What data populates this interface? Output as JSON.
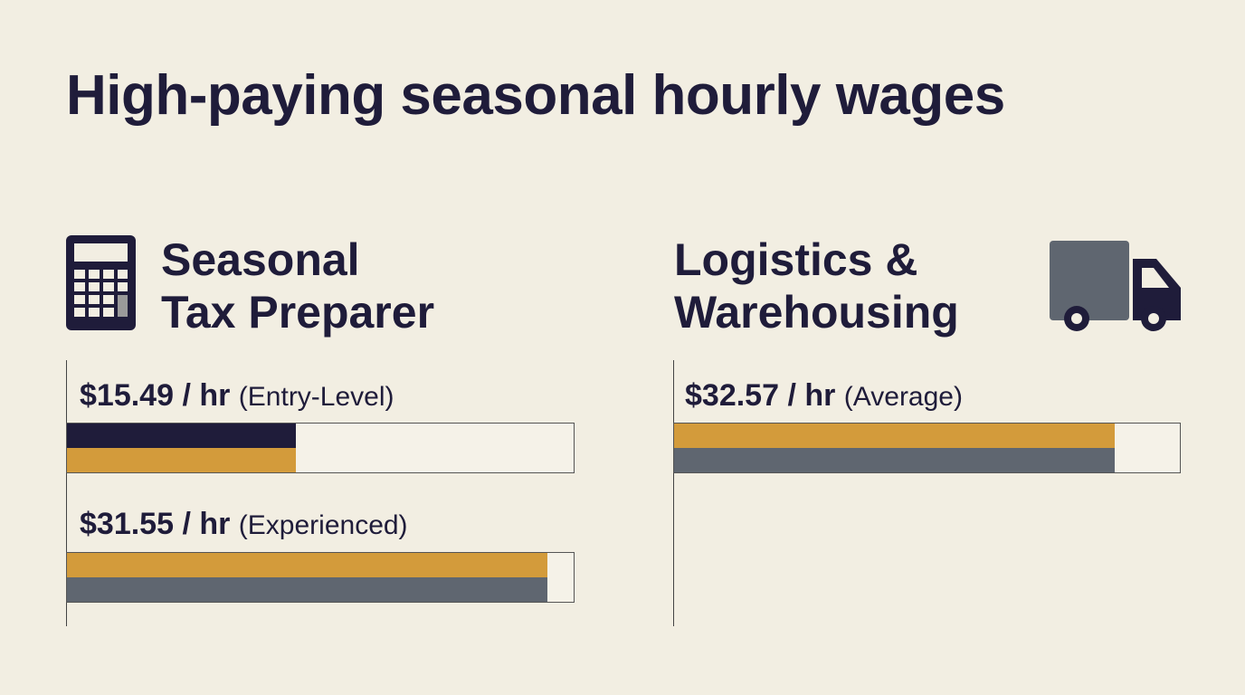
{
  "title": "High-paying seasonal hourly wages",
  "panels": [
    {
      "heading": [
        "Seasonal",
        "Tax Preparer"
      ],
      "items": [
        {
          "rate": "$15.49 / hr",
          "note": "(Entry-Level)"
        },
        {
          "rate": "$31.55 / hr",
          "note": "(Experienced)"
        }
      ]
    },
    {
      "heading": [
        "Logistics &",
        "Warehousing"
      ],
      "items": [
        {
          "rate": "$32.57 / hr",
          "note": "(Average)"
        }
      ]
    }
  ]
}
